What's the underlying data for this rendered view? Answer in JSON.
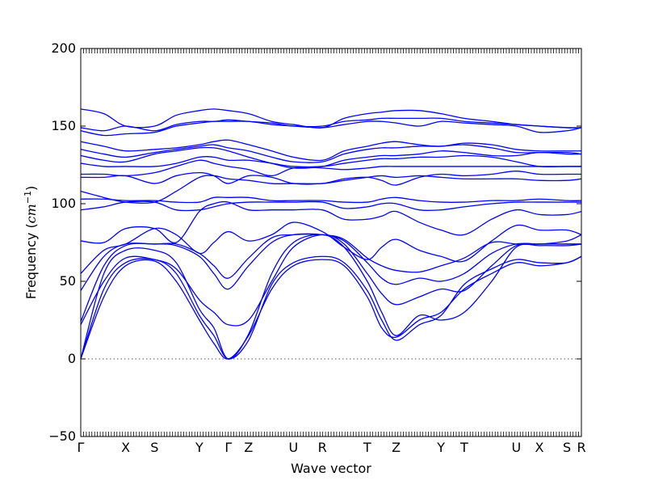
{
  "chart_data": {
    "type": "line",
    "title": "",
    "xlabel": "Wave vector",
    "ylabel_prefix": "Frequency (",
    "ylabel_unit_base": "cm",
    "ylabel_unit_exp": "−1",
    "ylabel_suffix": ")",
    "ylim": [
      -50,
      200
    ],
    "yticks": [
      -50,
      0,
      50,
      100,
      150,
      200
    ],
    "xlim": [
      0,
      17.3
    ],
    "grid": false,
    "zero_line": true,
    "line_color": "#0000ff",
    "zero_line_color": "#555555",
    "high_symmetry_points": [
      {
        "label": "Γ",
        "x": 0.0
      },
      {
        "label": "X",
        "x": 1.55
      },
      {
        "label": "S",
        "x": 2.55
      },
      {
        "label": "Y",
        "x": 4.1
      },
      {
        "label": "Γ",
        "x": 5.1
      },
      {
        "label": "Z",
        "x": 5.8
      },
      {
        "label": "U",
        "x": 7.35
      },
      {
        "label": "R",
        "x": 8.35
      },
      {
        "label": "T",
        "x": 9.9
      },
      {
        "label": "Z",
        "x": 10.9
      },
      {
        "label": "Y",
        "x": 12.45
      },
      {
        "label": "T",
        "x": 13.25
      },
      {
        "label": "U",
        "x": 15.05
      },
      {
        "label": "X",
        "x": 15.85
      },
      {
        "label": "S",
        "x": 16.8
      },
      {
        "label": "R",
        "x": 17.3
      }
    ],
    "bands": [
      {
        "x": [
          0,
          0.8,
          1.55,
          2.55,
          3.3,
          4.1,
          4.6,
          5.1,
          5.8,
          6.6,
          7.35,
          8.35,
          9.1,
          9.9,
          10.4,
          10.9,
          11.7,
          12.45,
          13.25,
          14.2,
          15.05,
          15.85,
          16.8,
          17.3
        ],
        "y": [
          0,
          40,
          60,
          63,
          50,
          25,
          10,
          0,
          15,
          45,
          60,
          64,
          60,
          40,
          20,
          14,
          25,
          30,
          45,
          55,
          62,
          60,
          62,
          66
        ]
      },
      {
        "x": [
          0,
          0.8,
          1.55,
          2.55,
          3.3,
          4.1,
          4.6,
          5.1,
          5.8,
          6.6,
          7.35,
          8.35,
          9.1,
          9.9,
          10.4,
          10.9,
          11.7,
          12.45,
          13.25,
          14.2,
          15.05,
          15.85,
          16.8,
          17.3
        ],
        "y": [
          0,
          45,
          62,
          64,
          55,
          28,
          15,
          0,
          12,
          48,
          62,
          66,
          62,
          44,
          25,
          12,
          22,
          28,
          48,
          58,
          64,
          62,
          62,
          66
        ]
      },
      {
        "x": [
          0,
          0.8,
          1.55,
          2.55,
          3.3,
          4.1,
          4.6,
          5.1,
          5.8,
          6.6,
          7.35,
          8.35,
          9.1,
          9.9,
          10.4,
          10.9,
          11.7,
          12.45,
          13.25,
          14.2,
          15.05,
          15.85,
          16.8,
          17.3
        ],
        "y": [
          0,
          55,
          70,
          70,
          62,
          32,
          20,
          0,
          16,
          55,
          75,
          80,
          72,
          50,
          30,
          15,
          28,
          25,
          30,
          50,
          72,
          73,
          73,
          74
        ]
      },
      {
        "x": [
          0,
          0.8,
          1.55,
          2.55,
          3.3,
          4.1,
          4.6,
          5.1,
          5.8,
          6.6,
          7.35,
          8.35,
          9.1,
          9.9,
          10.4,
          10.9,
          11.7,
          12.45,
          13.25,
          14.2,
          15.05,
          15.85,
          16.8,
          17.3
        ],
        "y": [
          22,
          50,
          65,
          64,
          58,
          38,
          30,
          22,
          25,
          50,
          72,
          80,
          74,
          55,
          42,
          35,
          40,
          45,
          44,
          60,
          73,
          74,
          74,
          74
        ]
      },
      {
        "x": [
          0,
          0.8,
          1.55,
          2.55,
          3.3,
          4.1,
          4.6,
          5.1,
          5.8,
          6.6,
          7.35,
          8.35,
          9.1,
          9.9,
          10.4,
          10.9,
          11.7,
          12.45,
          13.25,
          14.2,
          15.05,
          15.85,
          16.8,
          17.3
        ],
        "y": [
          24,
          60,
          73,
          74,
          73,
          66,
          55,
          45,
          60,
          75,
          80,
          80,
          76,
          62,
          52,
          48,
          52,
          50,
          55,
          68,
          74,
          74,
          74,
          74
        ]
      },
      {
        "x": [
          0,
          0.8,
          1.55,
          2.55,
          3.3,
          4.1,
          4.6,
          5.1,
          5.8,
          6.6,
          7.35,
          8.35,
          9.1,
          9.9,
          10.4,
          10.9,
          11.7,
          12.45,
          13.25,
          14.2,
          15.05,
          15.85,
          16.8,
          17.3
        ],
        "y": [
          44,
          66,
          74,
          74,
          74,
          68,
          60,
          52,
          65,
          78,
          80,
          80,
          77,
          65,
          60,
          57,
          56,
          60,
          65,
          75,
          74,
          74,
          76,
          80
        ]
      },
      {
        "x": [
          0,
          0.8,
          1.55,
          2.55,
          3.3,
          4.1,
          4.6,
          5.1,
          5.8,
          6.6,
          7.35,
          8.35,
          9.1,
          9.9,
          10.4,
          10.9,
          11.7,
          12.45,
          13.25,
          14.2,
          15.05,
          15.85,
          16.8,
          17.3
        ],
        "y": [
          55,
          70,
          74,
          84,
          80,
          68,
          75,
          82,
          76,
          80,
          88,
          82,
          72,
          64,
          72,
          77,
          70,
          66,
          63,
          76,
          86,
          83,
          83,
          80
        ]
      },
      {
        "x": [
          0,
          0.8,
          1.55,
          2.55,
          3.3,
          4.1,
          4.6,
          5.1,
          5.8,
          6.6,
          7.35,
          8.35,
          9.1,
          9.9,
          10.4,
          10.9,
          11.7,
          12.45,
          13.25,
          14.2,
          15.05,
          15.85,
          16.8,
          17.3
        ],
        "y": [
          76,
          75,
          84,
          84,
          75,
          95,
          100,
          101,
          96,
          96,
          96,
          96,
          90,
          90,
          92,
          95,
          88,
          83,
          80,
          90,
          96,
          93,
          93,
          95
        ]
      },
      {
        "x": [
          0,
          0.8,
          1.55,
          2.55,
          3.3,
          4.1,
          4.6,
          5.1,
          5.8,
          6.6,
          7.35,
          8.35,
          9.1,
          9.9,
          10.4,
          10.9,
          11.7,
          12.45,
          13.25,
          14.2,
          15.05,
          15.85,
          16.8,
          17.3
        ],
        "y": [
          96,
          98,
          101,
          101,
          96,
          96,
          98,
          100,
          101,
          101,
          101,
          101,
          97,
          98,
          100,
          100,
          96,
          96,
          98,
          100,
          101,
          101,
          101,
          101
        ]
      },
      {
        "x": [
          0,
          0.8,
          1.55,
          2.55,
          3.3,
          4.1,
          4.6,
          5.1,
          5.8,
          6.6,
          7.35,
          8.35,
          9.1,
          9.9,
          10.4,
          10.9,
          11.7,
          12.45,
          13.25,
          14.2,
          15.05,
          15.85,
          16.8,
          17.3
        ],
        "y": [
          103,
          103,
          102,
          102,
          101,
          101,
          104,
          104,
          104,
          102,
          102,
          102,
          101,
          101,
          103,
          104,
          102,
          101,
          101,
          102,
          102,
          103,
          102,
          102
        ]
      },
      {
        "x": [
          0,
          0.8,
          1.55,
          2.55,
          3.3,
          4.1,
          4.6,
          5.1,
          5.8,
          6.6,
          7.35,
          8.35,
          9.1,
          9.9,
          10.4,
          10.9,
          11.7,
          12.45,
          13.25,
          14.2,
          15.05,
          15.85,
          16.8,
          17.3
        ],
        "y": [
          108,
          104,
          101,
          101,
          108,
          117,
          118,
          116,
          115,
          113,
          113,
          113,
          115,
          117,
          118,
          117,
          118,
          117,
          116,
          116,
          116,
          115,
          115,
          116
        ]
      },
      {
        "x": [
          0,
          0.8,
          1.55,
          2.55,
          3.3,
          4.1,
          4.6,
          5.1,
          5.8,
          6.6,
          7.35,
          8.35,
          9.1,
          9.9,
          10.4,
          10.9,
          11.7,
          12.45,
          13.25,
          14.2,
          15.05,
          15.85,
          16.8,
          17.3
        ],
        "y": [
          117,
          117,
          118,
          113,
          118,
          120,
          118,
          113,
          118,
          117,
          113,
          113,
          116,
          117,
          115,
          112,
          117,
          119,
          118,
          119,
          121,
          119,
          119,
          119
        ]
      },
      {
        "x": [
          0,
          0.8,
          1.55,
          2.55,
          3.3,
          4.1,
          4.6,
          5.1,
          5.8,
          6.6,
          7.35,
          8.35,
          9.1,
          9.9,
          10.4,
          10.9,
          11.7,
          12.45,
          13.25,
          14.2,
          15.05,
          15.85,
          16.8,
          17.3
        ],
        "y": [
          119,
          119,
          118,
          120,
          124,
          128,
          126,
          124,
          122,
          118,
          123,
          123,
          122,
          123,
          124,
          124,
          124,
          124,
          124,
          124,
          124,
          124,
          124,
          124
        ]
      },
      {
        "x": [
          0,
          0.8,
          1.55,
          2.55,
          3.3,
          4.1,
          4.6,
          5.1,
          5.8,
          6.6,
          7.35,
          8.35,
          9.1,
          9.9,
          10.4,
          10.9,
          11.7,
          12.45,
          13.25,
          14.2,
          15.05,
          15.85,
          16.8,
          17.3
        ],
        "y": [
          126,
          124,
          124,
          124,
          126,
          130,
          130,
          128,
          128,
          126,
          124,
          124,
          126,
          128,
          129,
          129,
          130,
          130,
          131,
          130,
          127,
          124,
          124,
          124
        ]
      },
      {
        "x": [
          0,
          0.8,
          1.55,
          2.55,
          3.3,
          4.1,
          4.6,
          5.1,
          5.8,
          6.6,
          7.35,
          8.35,
          9.1,
          9.9,
          10.4,
          10.9,
          11.7,
          12.45,
          13.25,
          14.2,
          15.05,
          15.85,
          16.8,
          17.3
        ],
        "y": [
          131,
          128,
          127,
          132,
          134,
          136,
          136,
          134,
          130,
          126,
          123,
          124,
          128,
          130,
          131,
          131,
          132,
          134,
          133,
          131,
          131,
          133,
          132,
          132
        ]
      },
      {
        "x": [
          0,
          0.8,
          1.55,
          2.55,
          3.3,
          4.1,
          4.6,
          5.1,
          5.8,
          6.6,
          7.35,
          8.35,
          9.1,
          9.9,
          10.4,
          10.9,
          11.7,
          12.45,
          13.25,
          14.2,
          15.05,
          15.85,
          16.8,
          17.3
        ],
        "y": [
          135,
          132,
          130,
          133,
          135,
          137,
          138,
          136,
          134,
          130,
          127,
          127,
          132,
          135,
          136,
          136,
          137,
          137,
          138,
          136,
          133,
          133,
          133,
          132
        ]
      },
      {
        "x": [
          0,
          0.8,
          1.55,
          2.55,
          3.3,
          4.1,
          4.6,
          5.1,
          5.8,
          6.6,
          7.35,
          8.35,
          9.1,
          9.9,
          10.4,
          10.9,
          11.7,
          12.45,
          13.25,
          14.2,
          15.05,
          15.85,
          16.8,
          17.3
        ],
        "y": [
          140,
          137,
          134,
          135,
          136,
          138,
          140,
          141,
          138,
          134,
          130,
          128,
          134,
          137,
          139,
          140,
          138,
          137,
          139,
          138,
          135,
          134,
          134,
          134
        ]
      },
      {
        "x": [
          0,
          0.8,
          1.55,
          2.55,
          3.3,
          4.1,
          4.6,
          5.1,
          5.8,
          6.6,
          7.35,
          8.35,
          9.1,
          9.9,
          10.4,
          10.9,
          11.7,
          12.45,
          13.25,
          14.2,
          15.05,
          15.85,
          16.8,
          17.3
        ],
        "y": [
          147,
          144,
          145,
          146,
          150,
          152,
          153,
          153,
          153,
          151,
          150,
          149,
          151,
          153,
          153,
          152,
          150,
          153,
          152,
          151,
          150,
          146,
          147,
          149
        ]
      },
      {
        "x": [
          0,
          0.8,
          1.55,
          2.55,
          3.3,
          4.1,
          4.6,
          5.1,
          5.8,
          6.6,
          7.35,
          8.35,
          9.1,
          9.9,
          10.4,
          10.9,
          11.7,
          12.45,
          13.25,
          14.2,
          15.05,
          15.85,
          16.8,
          17.3
        ],
        "y": [
          149,
          147,
          150,
          147,
          151,
          153,
          153,
          154,
          153,
          152,
          150,
          150,
          153,
          154,
          155,
          155,
          155,
          155,
          153,
          152,
          151,
          150,
          149,
          149
        ]
      },
      {
        "x": [
          0,
          0.8,
          1.55,
          2.55,
          3.3,
          4.1,
          4.6,
          5.1,
          5.8,
          6.6,
          7.35,
          8.35,
          9.1,
          9.9,
          10.4,
          10.9,
          11.7,
          12.45,
          13.25,
          14.2,
          15.05,
          15.85,
          16.8,
          17.3
        ],
        "y": [
          161,
          158,
          150,
          150,
          157,
          160,
          161,
          160,
          158,
          153,
          151,
          149,
          155,
          158,
          159,
          160,
          160,
          158,
          155,
          153,
          151,
          150,
          149,
          149
        ]
      }
    ]
  }
}
